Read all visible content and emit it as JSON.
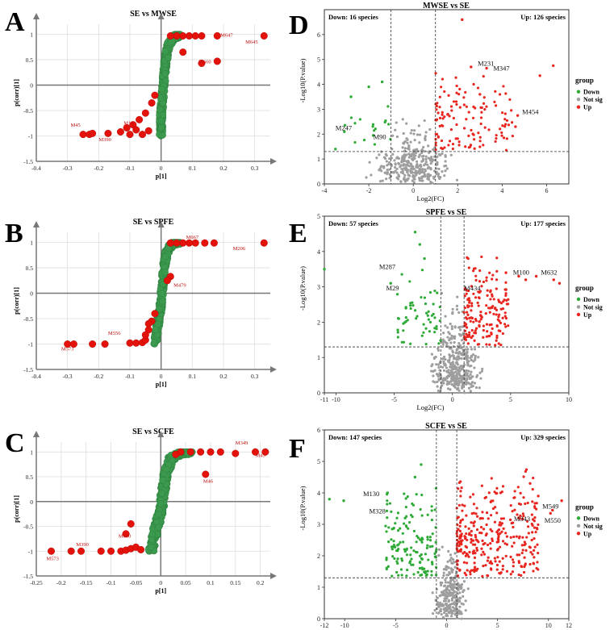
{
  "colors": {
    "up": "#e8261f",
    "down": "#2eaa37",
    "notsig": "#9e9e9e",
    "splot_red": "#e3120b",
    "splot_green": "#3c9a4e",
    "grid": "#dddddd",
    "axis": "#777777"
  },
  "chart_data": [
    {
      "id": "A",
      "type": "scatter",
      "title": "SE vs MWSE",
      "xlabel": "p[1]",
      "ylabel": "p(corr)[1]",
      "xlim": [
        -0.4,
        0.35
      ],
      "ylim": [
        -1.5,
        1.2
      ],
      "xticks": [
        "-0.4",
        "-0.3",
        "-0.2",
        "-0.1",
        "0",
        "0.1",
        "0.2",
        "0.3"
      ],
      "xtickvals": [
        -0.4,
        -0.3,
        -0.2,
        -0.1,
        0,
        0.1,
        0.2,
        0.3
      ],
      "yticks": [
        "-1.5",
        "-1",
        "-0.5",
        "0",
        "0.5",
        "1"
      ],
      "ytickvals": [
        -1.5,
        -1,
        -0.5,
        0,
        0.5,
        1
      ],
      "grid": true,
      "annotations": [
        {
          "label": "M647",
          "x": 0.19,
          "y": 0.95
        },
        {
          "label": "M645",
          "x": 0.27,
          "y": 0.82
        },
        {
          "label": "M660",
          "x": 0.12,
          "y": 0.43
        },
        {
          "label": "M45",
          "x": -0.29,
          "y": -0.82
        },
        {
          "label": "M390",
          "x": -0.2,
          "y": -1.1
        },
        {
          "label": "M14",
          "x": -0.12,
          "y": -0.78
        }
      ],
      "red_points": [
        [
          0.33,
          0.97
        ],
        [
          0.18,
          0.97
        ],
        [
          0.13,
          0.97
        ],
        [
          0.11,
          0.97
        ],
        [
          0.09,
          0.97
        ],
        [
          0.07,
          0.97
        ],
        [
          0.05,
          0.97
        ],
        [
          0.03,
          0.97
        ],
        [
          0.18,
          0.47
        ],
        [
          0.13,
          0.43
        ],
        [
          0.07,
          0.65
        ],
        [
          -0.25,
          -0.97
        ],
        [
          -0.23,
          -0.97
        ],
        [
          -0.22,
          -0.95
        ],
        [
          -0.17,
          -0.95
        ],
        [
          -0.13,
          -0.92
        ],
        [
          -0.11,
          -0.84
        ],
        [
          -0.09,
          -0.78
        ],
        [
          -0.07,
          -0.68
        ],
        [
          -0.05,
          -0.55
        ],
        [
          -0.03,
          -0.35
        ],
        [
          -0.02,
          -0.2
        ],
        [
          -0.1,
          -0.97
        ],
        [
          -0.06,
          -0.97
        ],
        [
          -0.04,
          -0.9
        ],
        [
          -0.08,
          -0.88
        ]
      ],
      "green_trend": [
        [
          0,
          -1
        ],
        [
          0,
          -0.6
        ],
        [
          0.005,
          -0.2
        ],
        [
          0.01,
          0.2
        ],
        [
          0.015,
          0.5
        ],
        [
          0.025,
          0.8
        ],
        [
          0.04,
          0.95
        ],
        [
          0.06,
          0.98
        ]
      ]
    },
    {
      "id": "B",
      "type": "scatter",
      "title": "SE vs SPFE",
      "xlabel": "p[1]",
      "ylabel": "p(corr)[1]",
      "xlim": [
        -0.4,
        0.35
      ],
      "ylim": [
        -1.5,
        1.2
      ],
      "xticks": [
        "-0.4",
        "-0.3",
        "-0.2",
        "-0.1",
        "0",
        "0.1",
        "0.2",
        "0.3"
      ],
      "xtickvals": [
        -0.4,
        -0.3,
        -0.2,
        -0.1,
        0,
        0.1,
        0.2,
        0.3
      ],
      "yticks": [
        "-1.5",
        "-1",
        "-0.5",
        "0",
        "0.5",
        "1"
      ],
      "ytickvals": [
        -1.5,
        -1,
        -0.5,
        0,
        0.5,
        1
      ],
      "grid": true,
      "annotations": [
        {
          "label": "M667",
          "x": 0.08,
          "y": 1.07
        },
        {
          "label": "M206",
          "x": 0.23,
          "y": 0.85
        },
        {
          "label": "M479",
          "x": 0.04,
          "y": 0.13
        },
        {
          "label": "M556",
          "x": -0.17,
          "y": -0.82
        },
        {
          "label": "M573",
          "x": -0.32,
          "y": -1.13
        }
      ],
      "red_points": [
        [
          0.33,
          0.99
        ],
        [
          0.17,
          0.99
        ],
        [
          0.14,
          0.99
        ],
        [
          0.11,
          0.99
        ],
        [
          0.09,
          0.99
        ],
        [
          0.07,
          0.99
        ],
        [
          0.05,
          0.99
        ],
        [
          0.03,
          0.99
        ],
        [
          0.03,
          0.33
        ],
        [
          0.02,
          0.25
        ],
        [
          -0.3,
          -1
        ],
        [
          -0.28,
          -1
        ],
        [
          -0.22,
          -1
        ],
        [
          -0.18,
          -1
        ],
        [
          -0.1,
          -0.98
        ],
        [
          -0.08,
          -0.98
        ],
        [
          -0.06,
          -0.97
        ],
        [
          -0.05,
          -0.92
        ],
        [
          -0.04,
          -0.72
        ],
        [
          -0.03,
          -0.55
        ],
        [
          -0.02,
          -0.4
        ],
        [
          -0.04,
          -0.6
        ],
        [
          -0.05,
          -0.82
        ]
      ],
      "green_trend": [
        [
          -0.02,
          -1
        ],
        [
          -0.01,
          -0.6
        ],
        [
          0,
          -0.2
        ],
        [
          0.005,
          0.2
        ],
        [
          0.01,
          0.55
        ],
        [
          0.02,
          0.85
        ],
        [
          0.04,
          0.99
        ],
        [
          0.06,
          1
        ]
      ]
    },
    {
      "id": "C",
      "type": "scatter",
      "title": "SE vs SCFE",
      "xlabel": "p[1]",
      "ylabel": "p(corr)[1]",
      "xlim": [
        -0.25,
        0.22
      ],
      "ylim": [
        -1.5,
        1.2
      ],
      "xticks": [
        "-0.25",
        "-0.2",
        "-0.15",
        "-0.1",
        "-0.05",
        "0",
        "0.05",
        "0.1",
        "0.15",
        "0.2"
      ],
      "xtickvals": [
        -0.25,
        -0.2,
        -0.15,
        -0.1,
        -0.05,
        0,
        0.05,
        0.1,
        0.15,
        0.2
      ],
      "yticks": [
        "-1.5",
        "-1",
        "-0.5",
        "0",
        "0.5",
        "1"
      ],
      "ytickvals": [
        -1.5,
        -1,
        -0.5,
        0,
        0.5,
        1
      ],
      "grid": true,
      "annotations": [
        {
          "label": "M349",
          "x": 0.15,
          "y": 1.15
        },
        {
          "label": "M45",
          "x": 0.19,
          "y": 0.9
        },
        {
          "label": "M46",
          "x": 0.085,
          "y": 0.38
        },
        {
          "label": "M660",
          "x": -0.085,
          "y": -0.73
        },
        {
          "label": "M390",
          "x": -0.17,
          "y": -0.9
        },
        {
          "label": "M573",
          "x": -0.23,
          "y": -1.18
        }
      ],
      "red_points": [
        [
          0.21,
          1
        ],
        [
          0.19,
          1
        ],
        [
          0.15,
          0.97
        ],
        [
          0.12,
          1
        ],
        [
          0.1,
          1
        ],
        [
          0.08,
          1
        ],
        [
          0.06,
          1
        ],
        [
          0.04,
          1
        ],
        [
          0.03,
          0.95
        ],
        [
          0.09,
          0.55
        ],
        [
          -0.22,
          -1
        ],
        [
          -0.18,
          -1
        ],
        [
          -0.16,
          -1
        ],
        [
          -0.12,
          -1
        ],
        [
          -0.1,
          -1
        ],
        [
          -0.08,
          -1
        ],
        [
          -0.07,
          -0.98
        ],
        [
          -0.06,
          -0.95
        ],
        [
          -0.05,
          -0.92
        ],
        [
          -0.07,
          -0.65
        ],
        [
          -0.06,
          -0.45
        ],
        [
          -0.04,
          -0.97
        ]
      ],
      "green_trend": [
        [
          -0.02,
          -1
        ],
        [
          -0.01,
          -0.55
        ],
        [
          0,
          -0.2
        ],
        [
          0.005,
          0.2
        ],
        [
          0.01,
          0.55
        ],
        [
          0.02,
          0.85
        ],
        [
          0.04,
          0.98
        ],
        [
          0.06,
          1
        ]
      ]
    },
    {
      "id": "D",
      "type": "scatter",
      "title": "MWSE vs SE",
      "xlabel": "Log2(FC)",
      "ylabel": "-Log10(P.value)",
      "xlim": [
        -4,
        7
      ],
      "ylim": [
        0,
        7
      ],
      "xticks": [
        "-4",
        "-2",
        "0",
        "2",
        "4",
        "6"
      ],
      "xtickvals": [
        -4,
        -2,
        0,
        2,
        4,
        6
      ],
      "yticks": [
        "0",
        "1",
        "2",
        "3",
        "4",
        "5",
        "6"
      ],
      "ytickvals": [
        0,
        1,
        2,
        3,
        4,
        5,
        6
      ],
      "vlines": [
        -1,
        1
      ],
      "hline": 1.3,
      "down_text": "Down: 16 species",
      "up_text": "Up: 126 species",
      "legend": {
        "title": "group",
        "items": [
          "Down",
          "Not sig",
          "Up"
        ]
      },
      "annotations": [
        {
          "label": "M231",
          "x": 2.9,
          "y": 4.75
        },
        {
          "label": "M347",
          "x": 3.6,
          "y": 4.55
        },
        {
          "label": "M454",
          "x": 4.9,
          "y": 2.8
        },
        {
          "label": "M247",
          "x": -3.5,
          "y": 2.15
        },
        {
          "label": "M90",
          "x": -1.8,
          "y": 1.8
        }
      ],
      "gen": {
        "seed": 11,
        "down": 16,
        "up": 126,
        "ns": 320,
        "xc": 0,
        "xs": 0.8,
        "upx": [
          1,
          4.5
        ],
        "downx": [
          -3.2,
          -1
        ],
        "ymax": 4.8,
        "fixed_up": [
          [
            2.2,
            6.6
          ],
          [
            6.3,
            4.75
          ],
          [
            5.7,
            4.35
          ],
          [
            3.3,
            4.65
          ],
          [
            2.6,
            4.7
          ],
          [
            4.7,
            2.75
          ],
          [
            4.6,
            2.3
          ],
          [
            3.0,
            3.6
          ]
        ],
        "fixed_down": [
          [
            -3.1,
            2.1
          ],
          [
            -1.8,
            1.95
          ],
          [
            -1.4,
            4.1
          ],
          [
            -2.0,
            3.9
          ],
          [
            -2.8,
            3.5
          ],
          [
            -3.5,
            1.4
          ]
        ]
      }
    },
    {
      "id": "E",
      "type": "scatter",
      "title": "SPFE vs SE",
      "xlabel": "Log2(FC)",
      "ylabel": "-Log10(P.value)",
      "xlim": [
        -11,
        10
      ],
      "ylim": [
        0,
        5
      ],
      "xticks": [
        "-11",
        "-10",
        "-5",
        "0",
        "5",
        "10"
      ],
      "xtickvals": [
        -11,
        -10,
        -5,
        0,
        5,
        10
      ],
      "yticks": [
        "0",
        "1",
        "2",
        "3",
        "4",
        "5"
      ],
      "ytickvals": [
        0,
        1,
        2,
        3,
        4,
        5
      ],
      "vlines": [
        -1,
        1
      ],
      "hline": 1.3,
      "down_text": "Down: 57 species",
      "up_text": "Up: 177 species",
      "legend": {
        "title": "group",
        "items": [
          "Down",
          "Not sig",
          "Up"
        ]
      },
      "annotations": [
        {
          "label": "M287",
          "x": -6.3,
          "y": 3.5
        },
        {
          "label": "M29",
          "x": -5.7,
          "y": 2.9
        },
        {
          "label": "M434",
          "x": 1.0,
          "y": 2.9
        },
        {
          "label": "M100",
          "x": 5.2,
          "y": 3.35
        },
        {
          "label": "M632",
          "x": 7.6,
          "y": 3.35
        }
      ],
      "gen": {
        "seed": 23,
        "down": 57,
        "up": 177,
        "ns": 380,
        "xc": 0.3,
        "xs": 0.9,
        "upx": [
          1,
          4.8
        ],
        "downx": [
          -4.8,
          -1
        ],
        "ymax": 4.0,
        "fixed_up": [
          [
            9.2,
            3.1
          ],
          [
            8.7,
            3.2
          ],
          [
            7.2,
            3.3
          ],
          [
            6.3,
            3.2
          ],
          [
            5.7,
            3.3
          ],
          [
            4.6,
            3.4
          ]
        ],
        "fixed_down": [
          [
            -11,
            3.5
          ],
          [
            -5.3,
            3.1
          ],
          [
            -3.2,
            4.55
          ],
          [
            -2.8,
            4.2
          ],
          [
            -2.4,
            3.8
          ]
        ]
      }
    },
    {
      "id": "F",
      "type": "scatter",
      "title": "SCFE vs SE",
      "xlabel": "Log2(FC)",
      "ylabel": "-Log10(P.value)",
      "xlim": [
        -12,
        12
      ],
      "ylim": [
        0,
        6
      ],
      "xticks": [
        "-12",
        "-10",
        "-5",
        "0",
        "5",
        "10",
        "12"
      ],
      "xtickvals": [
        -12,
        -10,
        -5,
        0,
        5,
        10,
        12
      ],
      "yticks": [
        "0",
        "1",
        "2",
        "3",
        "4",
        "5",
        "6"
      ],
      "ytickvals": [
        0,
        1,
        2,
        3,
        4,
        5,
        6
      ],
      "vlines": [
        -1,
        1
      ],
      "hline": 1.3,
      "down_text": "Down: 147 species",
      "up_text": "Up: 329 species",
      "legend": {
        "title": "group",
        "items": [
          "Down",
          "Not sig",
          "Up"
        ]
      },
      "annotations": [
        {
          "label": "M130",
          "x": -8.2,
          "y": 3.9
        },
        {
          "label": "M328",
          "x": -7.6,
          "y": 3.35
        },
        {
          "label": "M343",
          "x": 6.6,
          "y": 3.1
        },
        {
          "label": "M549",
          "x": 9.4,
          "y": 3.5
        },
        {
          "label": "M550",
          "x": 9.6,
          "y": 3.05
        }
      ],
      "gen": {
        "seed": 37,
        "down": 147,
        "up": 329,
        "ns": 260,
        "xc": 0.3,
        "xs": 0.7,
        "upx": [
          1,
          9
        ],
        "downx": [
          -6,
          -1
        ],
        "ymax": 4.8,
        "fixed_up": [
          [
            11.3,
            3.75
          ],
          [
            10.4,
            3.45
          ],
          [
            10.2,
            3.35
          ],
          [
            9.0,
            3.9
          ],
          [
            8.2,
            4.3
          ]
        ],
        "fixed_down": [
          [
            -11.5,
            3.8
          ],
          [
            -10.1,
            3.75
          ],
          [
            -5.8,
            4.0
          ],
          [
            -2.5,
            4.9
          ],
          [
            -3.1,
            4.5
          ]
        ]
      }
    }
  ],
  "panel_letters": [
    "A",
    "B",
    "C",
    "D",
    "E",
    "F"
  ]
}
